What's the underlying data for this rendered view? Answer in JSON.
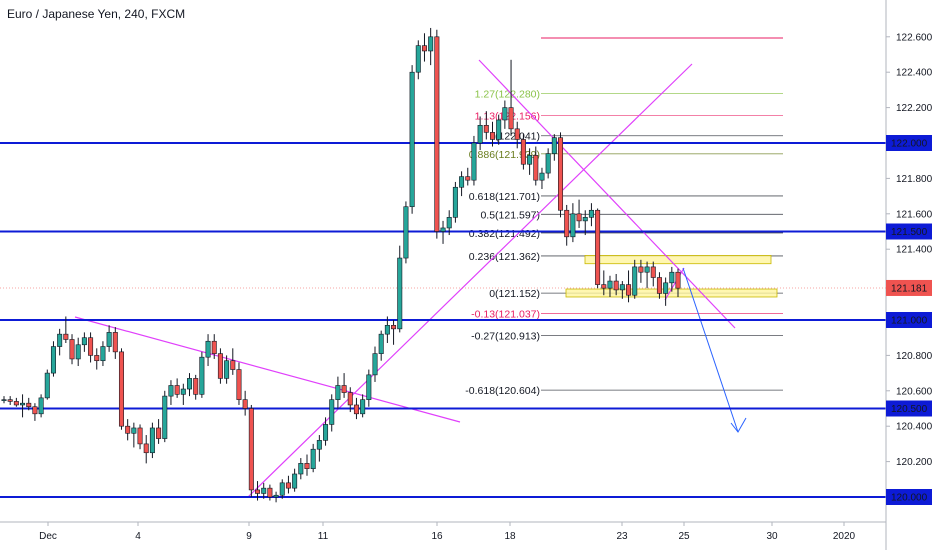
{
  "chart_data": {
    "type": "candlestick",
    "title": "Euro / Japanese Yen, 240, FXCM",
    "ylim": [
      119.91,
      122.68
    ],
    "y_ticks": [
      "120.200",
      "120.400",
      "120.600",
      "120.800",
      "121.000",
      "121.200",
      "121.400",
      "121.600",
      "121.800",
      "122.000",
      "122.200",
      "122.400",
      "122.600"
    ],
    "x_ticks": [
      "Dec",
      "4",
      "9",
      "11",
      "16",
      "18",
      "23",
      "25",
      "30",
      "2020"
    ],
    "current_price_label": "121.181",
    "current_price": 121.181,
    "horizontal_levels": [
      {
        "label": "122.000",
        "value": 122.0
      },
      {
        "label": "121.500",
        "value": 121.5
      },
      {
        "label": "121.000",
        "value": 121.0
      },
      {
        "label": "120.500",
        "value": 120.5
      },
      {
        "label": "120.000",
        "value": 120.0
      }
    ],
    "fib_levels": [
      {
        "label": "1.27(122.280)",
        "value": 122.28,
        "color": "#8bc34a"
      },
      {
        "label": "1.13(122.156)",
        "value": 122.156,
        "color": "#e91e63"
      },
      {
        "label": "1(122.041)",
        "value": 122.041,
        "color": "#131722"
      },
      {
        "label": "0.886(121.939)",
        "value": 121.939,
        "color": "#6a7d1e"
      },
      {
        "label": "0.618(121.701)",
        "value": 121.701,
        "color": "#131722"
      },
      {
        "label": "0.5(121.597)",
        "value": 121.597,
        "color": "#131722"
      },
      {
        "label": "0.382(121.492)",
        "value": 121.492,
        "color": "#131722"
      },
      {
        "label": "0.236(121.362)",
        "value": 121.362,
        "color": "#131722"
      },
      {
        "label": "0(121.152)",
        "value": 121.152,
        "color": "#131722"
      },
      {
        "label": "-0.13(121.037)",
        "value": 121.037,
        "color": "#e91e63"
      },
      {
        "label": "-0.27(120.913)",
        "value": 120.913,
        "color": "#131722"
      },
      {
        "label": "-0.618(120.604)",
        "value": 120.604,
        "color": "#131722"
      }
    ],
    "candles": [
      [
        120.55,
        120.57,
        120.53,
        120.55
      ],
      [
        120.55,
        120.57,
        120.52,
        120.54
      ],
      [
        120.54,
        120.56,
        120.51,
        120.52
      ],
      [
        120.52,
        120.58,
        120.45,
        120.53
      ],
      [
        120.53,
        120.56,
        120.49,
        120.51
      ],
      [
        120.51,
        120.53,
        120.43,
        120.47
      ],
      [
        120.47,
        120.58,
        120.45,
        120.56
      ],
      [
        120.56,
        120.72,
        120.55,
        120.7
      ],
      [
        120.7,
        120.88,
        120.68,
        120.85
      ],
      [
        120.85,
        120.95,
        120.8,
        120.92
      ],
      [
        120.92,
        121.02,
        120.87,
        120.89
      ],
      [
        120.89,
        120.92,
        120.75,
        120.78
      ],
      [
        120.78,
        120.9,
        120.74,
        120.86
      ],
      [
        120.86,
        120.93,
        120.82,
        120.9
      ],
      [
        120.9,
        120.93,
        120.76,
        120.8
      ],
      [
        120.8,
        120.84,
        120.72,
        120.77
      ],
      [
        120.77,
        120.88,
        120.74,
        120.85
      ],
      [
        120.85,
        120.97,
        120.82,
        120.93
      ],
      [
        120.93,
        120.96,
        120.78,
        120.82
      ],
      [
        120.82,
        120.84,
        120.38,
        120.4
      ],
      [
        120.4,
        120.44,
        120.32,
        120.36
      ],
      [
        120.36,
        120.42,
        120.28,
        120.39
      ],
      [
        120.39,
        120.41,
        120.27,
        120.3
      ],
      [
        120.3,
        120.35,
        120.19,
        120.25
      ],
      [
        120.25,
        120.42,
        120.22,
        120.39
      ],
      [
        120.39,
        120.44,
        120.3,
        120.33
      ],
      [
        120.33,
        120.6,
        120.31,
        120.57
      ],
      [
        120.57,
        120.66,
        120.52,
        120.63
      ],
      [
        120.63,
        120.67,
        120.56,
        120.58
      ],
      [
        120.58,
        120.64,
        120.52,
        120.61
      ],
      [
        120.61,
        120.7,
        120.57,
        120.67
      ],
      [
        120.67,
        120.69,
        120.55,
        120.58
      ],
      [
        120.58,
        120.82,
        120.56,
        120.79
      ],
      [
        120.79,
        120.92,
        120.74,
        120.88
      ],
      [
        120.88,
        120.92,
        120.78,
        120.81
      ],
      [
        120.81,
        120.84,
        120.64,
        120.67
      ],
      [
        120.67,
        120.8,
        120.64,
        120.77
      ],
      [
        120.77,
        120.84,
        120.69,
        120.72
      ],
      [
        120.72,
        120.76,
        120.52,
        120.55
      ],
      [
        120.55,
        120.6,
        120.46,
        120.5
      ],
      [
        120.5,
        120.52,
        120.0,
        120.04
      ],
      [
        120.04,
        120.09,
        119.98,
        120.02
      ],
      [
        120.02,
        120.08,
        119.99,
        120.05
      ],
      [
        120.05,
        120.07,
        119.98,
        120.0
      ],
      [
        120.0,
        120.03,
        119.97,
        120.01
      ],
      [
        120.01,
        120.1,
        119.99,
        120.08
      ],
      [
        120.08,
        120.12,
        120.02,
        120.05
      ],
      [
        120.05,
        120.16,
        120.03,
        120.13
      ],
      [
        120.13,
        120.22,
        120.1,
        120.19
      ],
      [
        120.19,
        120.24,
        120.12,
        120.16
      ],
      [
        120.16,
        120.3,
        120.14,
        120.27
      ],
      [
        120.27,
        120.35,
        120.2,
        120.32
      ],
      [
        120.32,
        120.45,
        120.29,
        120.41
      ],
      [
        120.41,
        120.58,
        120.37,
        120.55
      ],
      [
        120.55,
        120.68,
        120.5,
        120.63
      ],
      [
        120.63,
        120.7,
        120.56,
        120.59
      ],
      [
        120.59,
        120.62,
        120.48,
        120.52
      ],
      [
        120.52,
        120.56,
        120.44,
        120.47
      ],
      [
        120.47,
        120.58,
        120.45,
        120.55
      ],
      [
        120.55,
        120.72,
        120.51,
        120.69
      ],
      [
        120.69,
        120.85,
        120.65,
        120.81
      ],
      [
        120.81,
        120.94,
        120.77,
        120.92
      ],
      [
        120.92,
        121.02,
        120.87,
        120.97
      ],
      [
        120.97,
        121.0,
        120.86,
        120.95
      ],
      [
        120.95,
        121.42,
        120.93,
        121.35
      ],
      [
        121.35,
        121.67,
        121.32,
        121.64
      ],
      [
        121.64,
        122.44,
        121.6,
        122.4
      ],
      [
        122.4,
        122.58,
        122.36,
        122.55
      ],
      [
        122.55,
        122.62,
        122.46,
        122.52
      ],
      [
        122.52,
        122.65,
        122.44,
        122.6
      ],
      [
        122.6,
        122.64,
        121.46,
        121.5
      ],
      [
        121.5,
        121.56,
        121.43,
        121.52
      ],
      [
        121.52,
        121.62,
        121.48,
        121.58
      ],
      [
        121.58,
        121.78,
        121.55,
        121.75
      ],
      [
        121.75,
        121.84,
        121.7,
        121.81
      ],
      [
        121.81,
        121.86,
        121.76,
        121.79
      ],
      [
        121.79,
        122.04,
        121.76,
        122.0
      ],
      [
        122.0,
        122.15,
        121.96,
        122.1
      ],
      [
        122.1,
        122.18,
        122.02,
        122.06
      ],
      [
        122.06,
        122.12,
        121.98,
        122.02
      ],
      [
        122.02,
        122.16,
        121.99,
        122.13
      ],
      [
        122.13,
        122.24,
        122.08,
        122.2
      ],
      [
        122.2,
        122.47,
        122.04,
        122.08
      ],
      [
        122.08,
        122.12,
        121.97,
        122.02
      ],
      [
        122.02,
        122.05,
        121.85,
        121.88
      ],
      [
        121.88,
        121.97,
        121.82,
        121.93
      ],
      [
        121.93,
        121.98,
        121.76,
        121.79
      ],
      [
        121.79,
        121.86,
        121.74,
        121.83
      ],
      [
        121.83,
        121.97,
        121.8,
        121.94
      ],
      [
        121.94,
        122.05,
        121.9,
        122.03
      ],
      [
        122.03,
        122.06,
        121.58,
        121.62
      ],
      [
        121.62,
        121.65,
        121.42,
        121.47
      ],
      [
        121.47,
        121.66,
        121.44,
        121.6
      ],
      [
        121.6,
        121.68,
        121.52,
        121.56
      ],
      [
        121.56,
        121.62,
        121.48,
        121.58
      ],
      [
        121.58,
        121.66,
        121.53,
        121.62
      ],
      [
        121.62,
        121.63,
        121.18,
        121.2
      ],
      [
        121.2,
        121.28,
        121.14,
        121.18
      ],
      [
        121.18,
        121.25,
        121.13,
        121.22
      ],
      [
        121.22,
        121.26,
        121.14,
        121.17
      ],
      [
        121.17,
        121.22,
        121.12,
        121.2
      ],
      [
        121.2,
        121.28,
        121.1,
        121.14
      ],
      [
        121.14,
        121.34,
        121.12,
        121.3
      ],
      [
        121.3,
        121.34,
        121.21,
        121.27
      ],
      [
        121.27,
        121.33,
        121.18,
        121.3
      ],
      [
        121.3,
        121.33,
        121.19,
        121.24
      ],
      [
        121.24,
        121.27,
        121.12,
        121.15
      ],
      [
        121.15,
        121.24,
        121.08,
        121.21
      ],
      [
        121.21,
        121.3,
        121.16,
        121.27
      ],
      [
        121.27,
        121.29,
        121.13,
        121.18
      ]
    ]
  }
}
